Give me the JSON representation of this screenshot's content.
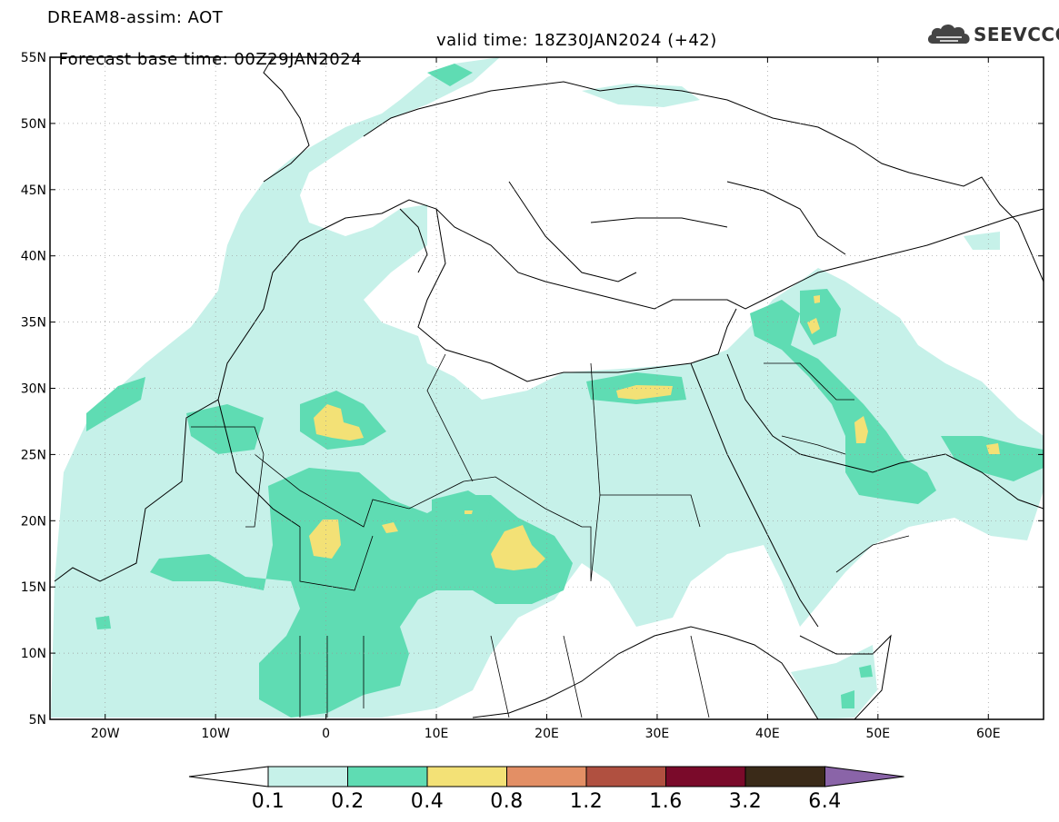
{
  "header": {
    "line1": "DREAM8-assim: AOT",
    "line2_base": "Forecast base time: 00Z29JAN2024",
    "line2_valid": "valid time: 18Z30JAN2024 (+42)"
  },
  "logo": {
    "text": "SEEVCCC",
    "icon": "cloud-icon"
  },
  "map": {
    "lat_labels": [
      "55N",
      "50N",
      "45N",
      "40N",
      "35N",
      "30N",
      "25N",
      "20N",
      "15N",
      "10N",
      "5N"
    ],
    "lon_labels": [
      "20W",
      "10W",
      "0",
      "10E",
      "20E",
      "30E",
      "40E",
      "50E",
      "60E"
    ],
    "lon_range": [
      -25,
      65
    ],
    "lat_range": [
      5,
      55
    ],
    "gridlines": "dotted"
  },
  "colorbar": {
    "levels": [
      "0.1",
      "0.2",
      "0.4",
      "0.8",
      "1.2",
      "1.6",
      "3.2",
      "6.4"
    ],
    "colors": [
      "#c6f1e9",
      "#5fdcb3",
      "#f3e176",
      "#e38f65",
      "#b05040",
      "#7a0a2a",
      "#3a2a18",
      "#8a64a8"
    ],
    "under_color": "#ffffff"
  }
}
